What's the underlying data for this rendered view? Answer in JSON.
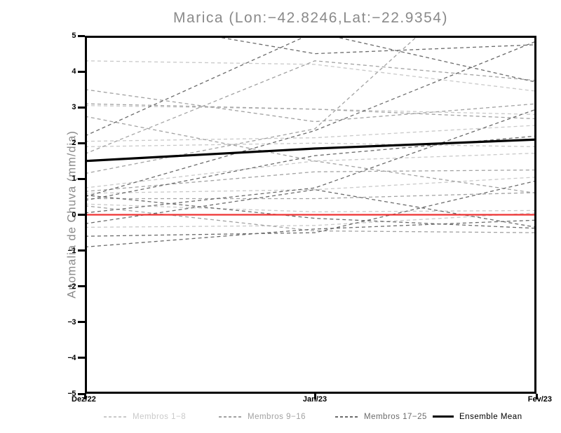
{
  "title": "Marica (Lon:−42.8246,Lat:−22.9354)",
  "chart_data": {
    "type": "line",
    "title": "Marica (Lon:−42.8246,Lat:−22.9354)",
    "xlabel": "",
    "ylabel": "Anomalia de Chuva (mm/dia)",
    "x_categories": [
      "Dez/22",
      "Jan/23",
      "Fev/23"
    ],
    "ylim": [
      -5,
      5
    ],
    "yticks": [
      5,
      4,
      3,
      2,
      1,
      0,
      -1,
      -2,
      -3,
      -4,
      -5
    ],
    "grid": false,
    "legend_position": "bottom",
    "series_groups": [
      {
        "name": "Membros 1−8",
        "color": "#c9c9c9",
        "line_style": "dashed",
        "members": [
          [
            4.3,
            4.2,
            3.45
          ],
          [
            3.05,
            2.95,
            2.8
          ],
          [
            2.05,
            2.15,
            2.5
          ],
          [
            1.9,
            2.0,
            1.9
          ],
          [
            0.75,
            1.5,
            1.72
          ],
          [
            0.6,
            0.7,
            1.05
          ],
          [
            0.3,
            0.08,
            0.12
          ],
          [
            -0.35,
            -0.3,
            0.05
          ]
        ]
      },
      {
        "name": "Membros 9−16",
        "color": "#a2a2a2",
        "line_style": "dashed",
        "members": [
          [
            3.5,
            2.6,
            3.1
          ],
          [
            3.1,
            2.95,
            2.68
          ],
          [
            2.75,
            1.5,
            0.6
          ],
          [
            1.7,
            4.3,
            3.75
          ],
          [
            1.15,
            2.4,
            8.0
          ],
          [
            0.65,
            1.2,
            1.25
          ],
          [
            0.45,
            0.45,
            0.62
          ],
          [
            0.25,
            -0.45,
            -0.5
          ]
        ]
      },
      {
        "name": "Membros 17−25",
        "color": "#6b6b6b",
        "line_style": "dashed",
        "members": [
          [
            5.6,
            4.5,
            4.75
          ],
          [
            2.2,
            5.1,
            3.7
          ],
          [
            0.5,
            2.35,
            4.85
          ],
          [
            0.05,
            0.75,
            2.95
          ],
          [
            -0.25,
            0.7,
            -0.35
          ],
          [
            -0.6,
            -0.5,
            0.95
          ],
          [
            -0.9,
            -0.4,
            -0.15
          ],
          [
            0.55,
            -0.1,
            -0.38
          ],
          [
            0.4,
            1.65,
            2.2
          ]
        ]
      }
    ],
    "zero_reference_line": {
      "color": "#ee3333",
      "values": [
        0,
        0,
        0
      ]
    },
    "ensemble_mean": {
      "name": "Ensemble Mean",
      "color": "#000000",
      "values": [
        1.5,
        1.85,
        2.1
      ]
    }
  },
  "legend": {
    "items": [
      {
        "label": "Membros 1−8",
        "color": "#c9c9c9",
        "style": "dashed"
      },
      {
        "label": "Membros 9−16",
        "color": "#a2a2a2",
        "style": "dashed"
      },
      {
        "label": "Membros 17−25",
        "color": "#6b6b6b",
        "style": "dashed"
      },
      {
        "label": "Ensemble Mean",
        "color": "#000000",
        "style": "solid"
      }
    ]
  },
  "colors": {
    "title_text": "#8a8a8a",
    "axis": "#000000",
    "background": "#ffffff"
  }
}
